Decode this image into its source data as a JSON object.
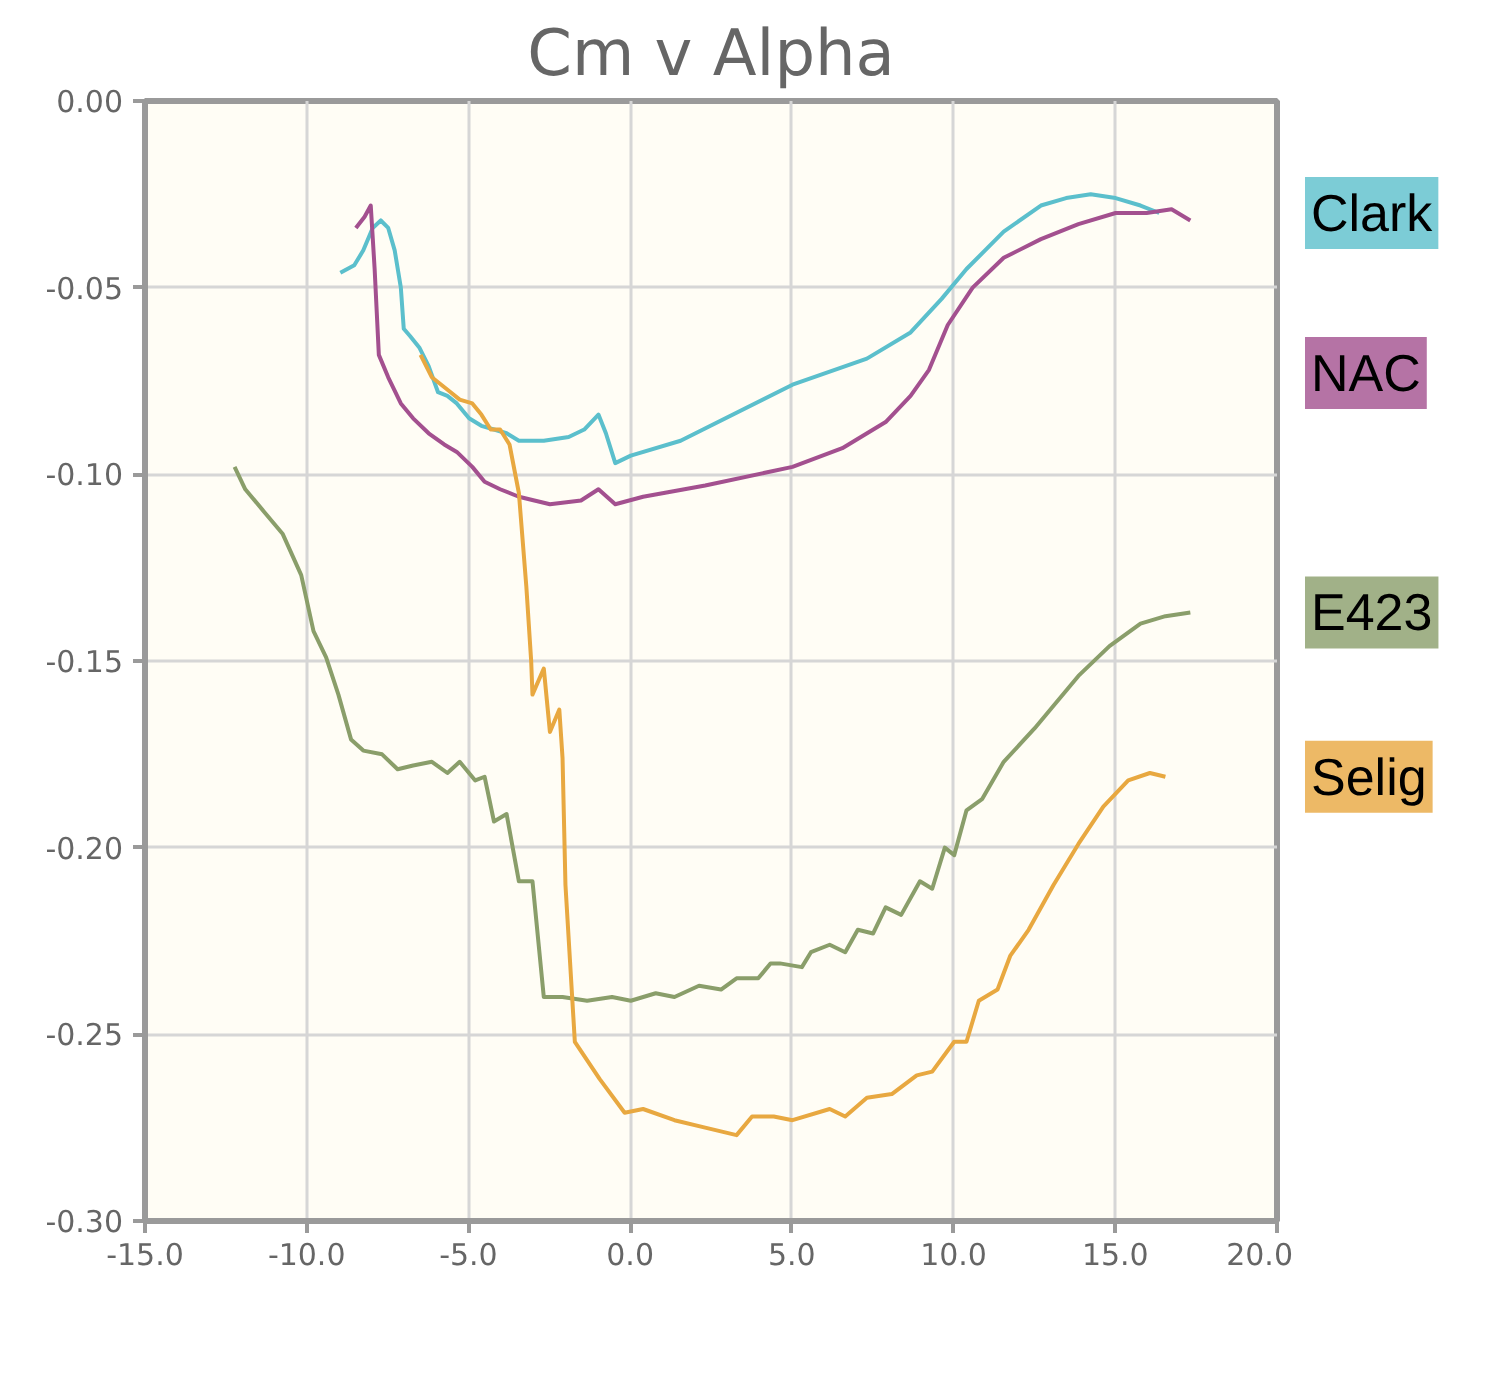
{
  "chart_data": {
    "type": "line",
    "title": "Cm v Alpha",
    "xlim": [
      -15,
      20
    ],
    "ylim": [
      -0.3,
      0
    ],
    "xticks": [
      {
        "value": -15,
        "label": "-15.0"
      },
      {
        "value": -10,
        "label": "-10.0"
      },
      {
        "value": -5,
        "label": "-5.0"
      },
      {
        "value": 0,
        "label": "0.0"
      },
      {
        "value": 5,
        "label": "5.0"
      },
      {
        "value": 10,
        "label": "10.0"
      },
      {
        "value": 15,
        "label": "15.0"
      },
      {
        "value": 20,
        "label": "20.0"
      }
    ],
    "yticks": [
      {
        "value": -0.3,
        "label": "-0.30"
      },
      {
        "value": -0.25,
        "label": "-0.25"
      },
      {
        "value": -0.2,
        "label": "-0.20"
      },
      {
        "value": -0.15,
        "label": "-0.15"
      },
      {
        "value": -0.1,
        "label": "-0.10"
      },
      {
        "value": -0.05,
        "label": "-0.05"
      },
      {
        "value": 0,
        "label": "0.00"
      }
    ],
    "grid": true,
    "line_style": "solid",
    "series": [
      {
        "name": "Clark",
        "color": "#5bbfcc",
        "x": [
          -8.96,
          -8.53,
          -8.25,
          -7.96,
          -7.71,
          -7.48,
          -7.28,
          -7.09,
          -7.0,
          -6.8,
          -6.52,
          -6.23,
          -5.94,
          -5.65,
          -5.36,
          -4.98,
          -4.6,
          -4.21,
          -3.82,
          -3.44,
          -2.67,
          -1.9,
          -1.42,
          -0.98,
          -0.75,
          -0.46,
          0.02,
          1.56,
          5.02,
          7.32,
          8.67,
          9.63,
          10.4,
          11.55,
          12.7,
          13.48,
          14.24,
          15.01,
          15.78,
          16.36
        ],
        "values": [
          -0.046,
          -0.044,
          -0.04,
          -0.034,
          -0.032,
          -0.034,
          -0.04,
          -0.05,
          -0.061,
          -0.063,
          -0.066,
          -0.071,
          -0.078,
          -0.079,
          -0.081,
          -0.085,
          -0.087,
          -0.088,
          -0.089,
          -0.091,
          -0.091,
          -0.09,
          -0.088,
          -0.084,
          -0.089,
          -0.097,
          -0.095,
          -0.091,
          -0.076,
          -0.069,
          -0.062,
          -0.053,
          -0.045,
          -0.035,
          -0.028,
          -0.026,
          -0.025,
          -0.026,
          -0.028,
          -0.03
        ]
      },
      {
        "name": "NAC",
        "color": "#a3508f",
        "x": [
          -8.48,
          -8.21,
          -8.02,
          -7.9,
          -7.77,
          -7.48,
          -7.09,
          -6.71,
          -6.23,
          -5.75,
          -5.36,
          -4.88,
          -4.5,
          -4.02,
          -3.44,
          -2.48,
          -1.52,
          -0.98,
          -0.46,
          0.4,
          2.32,
          5.02,
          6.56,
          7.9,
          8.67,
          9.24,
          9.82,
          10.59,
          11.55,
          12.7,
          13.86,
          15.01,
          15.97,
          16.74,
          17.32
        ],
        "values": [
          -0.034,
          -0.031,
          -0.028,
          -0.045,
          -0.068,
          -0.074,
          -0.081,
          -0.085,
          -0.089,
          -0.092,
          -0.094,
          -0.098,
          -0.102,
          -0.104,
          -0.106,
          -0.108,
          -0.107,
          -0.104,
          -0.108,
          -0.106,
          -0.103,
          -0.098,
          -0.093,
          -0.086,
          -0.079,
          -0.072,
          -0.06,
          -0.05,
          -0.042,
          -0.037,
          -0.033,
          -0.03,
          -0.03,
          -0.029,
          -0.032
        ]
      },
      {
        "name": "E423",
        "color": "#8a9e6a",
        "x": [
          -12.23,
          -11.9,
          -11.32,
          -10.74,
          -10.17,
          -9.79,
          -9.4,
          -9.02,
          -8.63,
          -8.25,
          -7.67,
          -7.19,
          -6.71,
          -6.13,
          -5.65,
          -5.27,
          -4.79,
          -4.5,
          -4.21,
          -3.82,
          -3.44,
          -3.02,
          -2.67,
          -2.09,
          -1.33,
          -0.56,
          0.02,
          0.79,
          1.37,
          2.13,
          2.81,
          3.29,
          3.96,
          4.34,
          4.63,
          5.31,
          5.59,
          6.17,
          6.65,
          7.04,
          7.51,
          7.9,
          8.38,
          8.96,
          9.34,
          9.73,
          10.02,
          10.4,
          10.88,
          11.55,
          12.51,
          13.09,
          13.86,
          14.82,
          15.78,
          16.55,
          17.32
        ],
        "values": [
          -0.098,
          -0.104,
          -0.11,
          -0.116,
          -0.127,
          -0.142,
          -0.149,
          -0.159,
          -0.171,
          -0.174,
          -0.175,
          -0.179,
          -0.178,
          -0.177,
          -0.18,
          -0.177,
          -0.182,
          -0.181,
          -0.193,
          -0.191,
          -0.209,
          -0.209,
          -0.24,
          -0.24,
          -0.241,
          -0.24,
          -0.241,
          -0.239,
          -0.24,
          -0.237,
          -0.238,
          -0.235,
          -0.235,
          -0.231,
          -0.231,
          -0.232,
          -0.228,
          -0.226,
          -0.228,
          -0.222,
          -0.223,
          -0.216,
          -0.218,
          -0.209,
          -0.211,
          -0.2,
          -0.202,
          -0.19,
          -0.187,
          -0.177,
          -0.168,
          -0.162,
          -0.154,
          -0.146,
          -0.14,
          -0.138,
          -0.137
        ]
      },
      {
        "name": "Selig",
        "color": "#e8a840",
        "x": [
          -6.48,
          -6.13,
          -5.84,
          -5.55,
          -5.27,
          -4.88,
          -4.6,
          -4.31,
          -4.02,
          -3.73,
          -3.44,
          -3.21,
          -3.06,
          -3.02,
          -2.67,
          -2.48,
          -2.19,
          -2.09,
          -2.0,
          -1.71,
          -0.94,
          -0.17,
          0.4,
          1.37,
          2.32,
          3.29,
          3.77,
          4.44,
          5.02,
          6.17,
          6.65,
          7.32,
          8.09,
          8.86,
          9.34,
          10.02,
          10.4,
          10.78,
          11.36,
          11.75,
          12.32,
          13.09,
          13.86,
          14.63,
          15.4,
          16.07,
          16.55
        ],
        "values": [
          -0.068,
          -0.074,
          -0.076,
          -0.078,
          -0.08,
          -0.081,
          -0.084,
          -0.088,
          -0.088,
          -0.092,
          -0.105,
          -0.13,
          -0.15,
          -0.159,
          -0.152,
          -0.169,
          -0.163,
          -0.176,
          -0.21,
          -0.252,
          -0.262,
          -0.271,
          -0.27,
          -0.273,
          -0.275,
          -0.277,
          -0.272,
          -0.272,
          -0.273,
          -0.27,
          -0.272,
          -0.267,
          -0.266,
          -0.261,
          -0.26,
          -0.252,
          -0.252,
          -0.241,
          -0.238,
          -0.229,
          -0.222,
          -0.21,
          -0.199,
          -0.189,
          -0.182,
          -0.18,
          -0.181
        ]
      }
    ]
  }
}
